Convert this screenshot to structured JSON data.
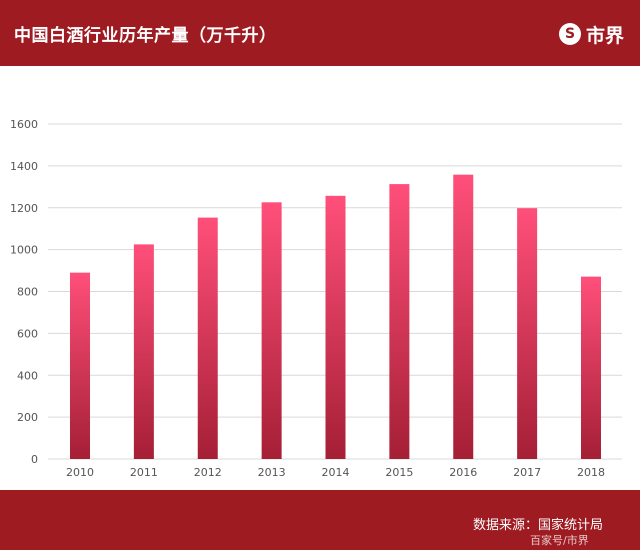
{
  "header": {
    "title": "中国白酒行业历年产量（万千升）",
    "brand_icon": "S",
    "brand_name": "市界"
  },
  "footer": {
    "source": "数据来源：国家统计局",
    "watermark": "百家号/市界"
  },
  "colors": {
    "header_bg": "#9e1b21",
    "bar_top": "#ff4f7a",
    "bar_bottom": "#a51f35",
    "grid": "#d9d9d9"
  },
  "chart_data": {
    "type": "bar",
    "categories": [
      "2010",
      "2011",
      "2012",
      "2013",
      "2014",
      "2015",
      "2016",
      "2017",
      "2018"
    ],
    "values": [
      890,
      1025,
      1153,
      1226,
      1257,
      1313,
      1358,
      1198,
      871
    ],
    "ylim": [
      0,
      1600
    ],
    "yticks": [
      0,
      200,
      400,
      600,
      800,
      1000,
      1200,
      1400,
      1600
    ],
    "grid": true,
    "title": "中国白酒行业历年产量（万千升）",
    "xlabel": "",
    "ylabel": ""
  }
}
